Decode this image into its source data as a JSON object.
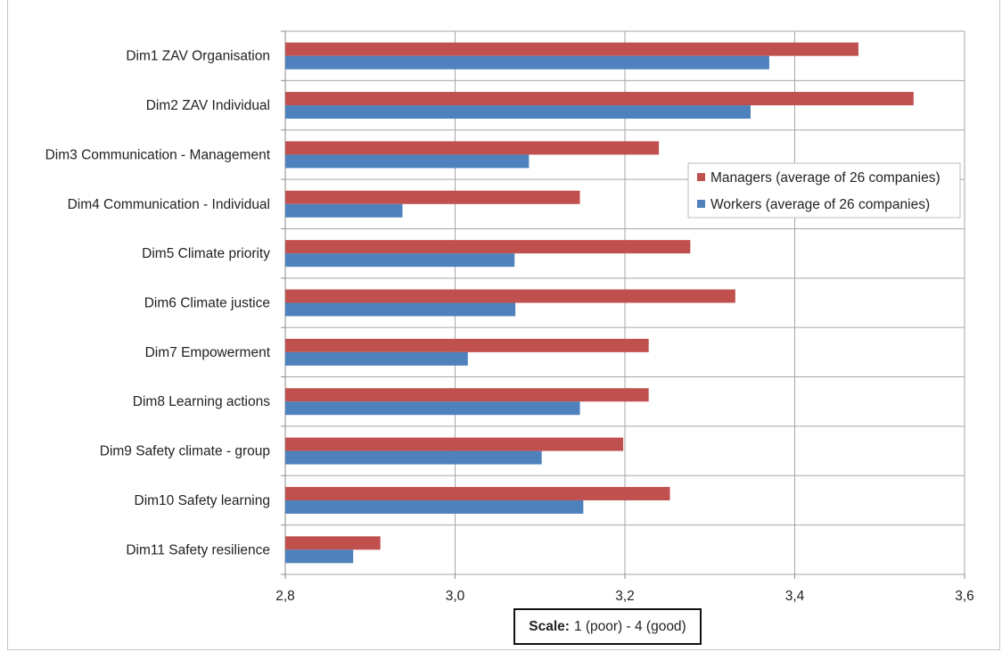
{
  "chart_data": {
    "type": "bar",
    "orientation": "horizontal",
    "categories": [
      "Dim1 ZAV Organisation",
      "Dim2 ZAV Individual",
      "Dim3 Communication - Management",
      "Dim4 Communication - Individual",
      "Dim5 Climate priority",
      "Dim6 Climate justice",
      "Dim7 Empowerment",
      "Dim8 Learning actions",
      "Dim9 Safety climate - group",
      "Dim10 Safety learning",
      "Dim11 Safety resilience"
    ],
    "series": [
      {
        "name": "Managers (average of 26 companies)",
        "color": "#c0504d",
        "values": [
          3.475,
          3.54,
          3.24,
          3.147,
          3.277,
          3.33,
          3.228,
          3.228,
          3.198,
          3.253,
          2.912
        ]
      },
      {
        "name": "Workers (average of 26 companies)",
        "color": "#4f81bd",
        "values": [
          3.37,
          3.348,
          3.087,
          2.938,
          3.07,
          3.071,
          3.015,
          3.147,
          3.102,
          3.151,
          2.88
        ]
      }
    ],
    "xlim": [
      2.8,
      3.6
    ],
    "xticks": [
      "2,8",
      "3,0",
      "3,2",
      "3,4",
      "3,6"
    ],
    "xtick_values": [
      2.8,
      3.0,
      3.2,
      3.4,
      3.6
    ],
    "grid": true,
    "legend_position": "right",
    "scale_note": {
      "label": "Scale:",
      "text": "1 (poor) - 4 (good)"
    }
  }
}
